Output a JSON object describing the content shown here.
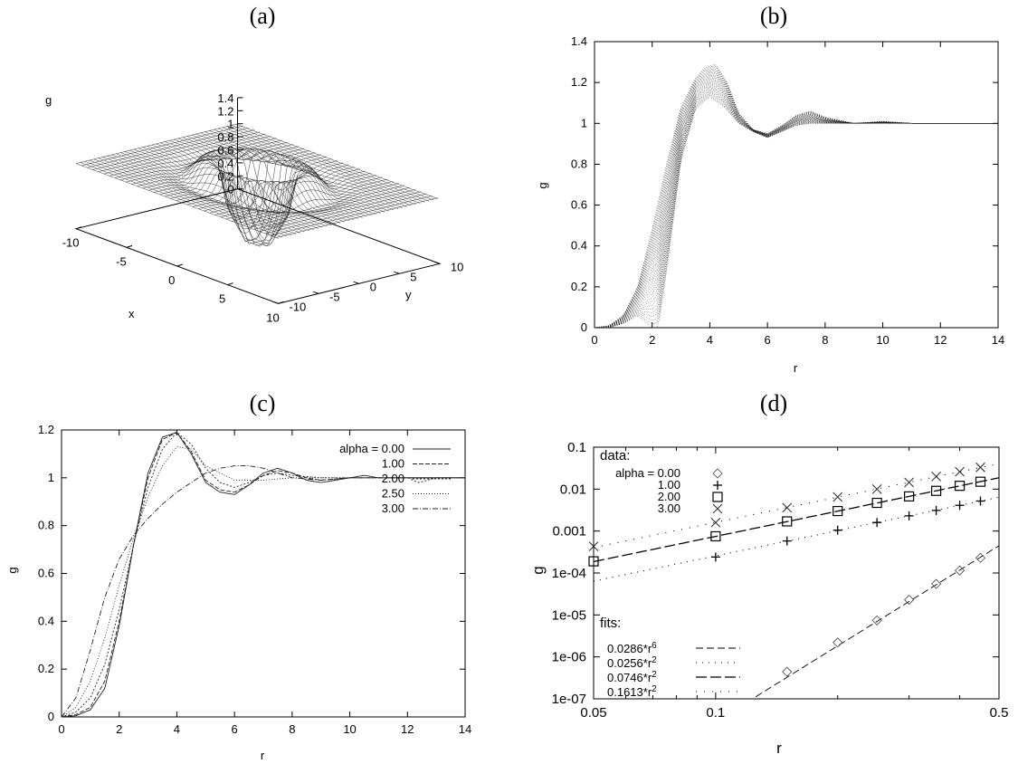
{
  "panels": {
    "a": {
      "title": "(a)"
    },
    "b": {
      "title": "(b)"
    },
    "c": {
      "title": "(c)"
    },
    "d": {
      "title": "(d)"
    }
  },
  "chart_data": [
    {
      "panel": "a",
      "type": "surface",
      "zlabel": "g",
      "xlabel": "x",
      "ylabel": "y",
      "z_ticks": [
        "1.4",
        "1.2",
        "1",
        "0.8",
        "0.6",
        "0.4",
        "0.2",
        "0"
      ],
      "x_ticks": [
        "-10",
        "-5",
        "0",
        "5",
        "10"
      ],
      "y_ticks": [
        "-10",
        "-5",
        "0",
        "5",
        "10"
      ],
      "xlim": [
        -10,
        10
      ],
      "ylim": [
        -10,
        10
      ],
      "zlim": [
        0,
        1.4
      ]
    },
    {
      "panel": "b",
      "type": "line",
      "xlabel": "r",
      "ylabel": "g",
      "xlim": [
        0,
        14
      ],
      "ylim": [
        0,
        1.4
      ],
      "x_ticks": [
        "0",
        "2",
        "4",
        "6",
        "8",
        "10",
        "12",
        "14"
      ],
      "y_ticks": [
        "0",
        "0.2",
        "0.4",
        "0.6",
        "0.8",
        "1",
        "1.2",
        "1.4"
      ],
      "envelope": {
        "upper": {
          "x": [
            0,
            0.5,
            1,
            1.5,
            2,
            2.5,
            3,
            3.5,
            3.8,
            4.2,
            4.6,
            5,
            5.5,
            6,
            6.5,
            7,
            7.5,
            8,
            9,
            10,
            11,
            12,
            13,
            14
          ],
          "y": [
            0,
            0.01,
            0.06,
            0.2,
            0.48,
            0.8,
            1.08,
            1.22,
            1.27,
            1.29,
            1.2,
            1.05,
            0.97,
            0.95,
            0.99,
            1.04,
            1.06,
            1.03,
            1.0,
            1.01,
            1.0,
            1.0,
            1.0,
            1.0
          ]
        },
        "lower": {
          "x": [
            0,
            0.5,
            1,
            1.5,
            2,
            2.2,
            2.5,
            3,
            3.5,
            4,
            4.5,
            5,
            5.5,
            6,
            6.5,
            7,
            7.5,
            8,
            9,
            10,
            11,
            12,
            13,
            14
          ],
          "y": [
            0,
            0.0,
            0.02,
            0.06,
            0.0,
            0.0,
            0.28,
            0.82,
            1.07,
            1.13,
            1.08,
            1.0,
            0.96,
            0.93,
            0.96,
            0.99,
            1.0,
            1.0,
            1.0,
            1.0,
            1.0,
            1.0,
            1.0,
            1.0
          ]
        }
      }
    },
    {
      "panel": "c",
      "type": "line",
      "xlabel": "r",
      "ylabel": "g",
      "xlim": [
        0,
        14
      ],
      "ylim": [
        0,
        1.2
      ],
      "x_ticks": [
        "0",
        "2",
        "4",
        "6",
        "8",
        "10",
        "12",
        "14"
      ],
      "y_ticks": [
        "0",
        "0.2",
        "0.4",
        "0.6",
        "0.8",
        "1",
        "1.2"
      ],
      "legend_labels": [
        "alpha = 0.00",
        "1.00",
        "2.00",
        "2.50",
        "3.00"
      ],
      "legend_position": "top-right",
      "series": [
        {
          "name": "alpha = 0.00",
          "dash": "",
          "x": [
            0,
            0.5,
            1,
            1.5,
            2,
            2.5,
            3,
            3.5,
            4,
            4.5,
            5,
            5.5,
            6,
            6.5,
            7,
            7.5,
            8,
            8.5,
            9,
            9.5,
            10,
            10.5,
            11,
            12,
            13,
            14
          ],
          "y": [
            0,
            0.005,
            0.03,
            0.12,
            0.38,
            0.72,
            1.02,
            1.17,
            1.19,
            1.1,
            0.98,
            0.94,
            0.93,
            0.97,
            1.02,
            1.04,
            1.02,
            0.99,
            0.98,
            0.99,
            1.0,
            1.01,
            1.0,
            1.0,
            1.0,
            1.0
          ]
        },
        {
          "name": "1.00",
          "dash": "5,2",
          "x": [
            0,
            0.5,
            1,
            1.5,
            2,
            2.5,
            3,
            3.5,
            4,
            4.5,
            5,
            5.5,
            6,
            6.5,
            7,
            7.5,
            8,
            8.5,
            9,
            10,
            11,
            12,
            13,
            14
          ],
          "y": [
            0,
            0.01,
            0.04,
            0.15,
            0.4,
            0.72,
            1.0,
            1.16,
            1.19,
            1.11,
            0.99,
            0.95,
            0.94,
            0.97,
            1.01,
            1.03,
            1.02,
            1.0,
            0.99,
            1.0,
            1.0,
            1.0,
            1.0,
            1.0
          ]
        },
        {
          "name": "2.00",
          "dash": "2,2",
          "x": [
            0,
            0.5,
            1,
            1.5,
            2,
            2.5,
            3,
            3.5,
            4,
            4.5,
            5,
            5.5,
            6,
            6.5,
            7,
            7.5,
            8,
            9,
            10,
            11,
            12,
            12.4,
            13,
            14
          ],
          "y": [
            0,
            0.02,
            0.08,
            0.22,
            0.45,
            0.72,
            0.96,
            1.12,
            1.19,
            1.14,
            1.04,
            0.98,
            0.96,
            0.98,
            1.01,
            1.02,
            1.01,
            1.0,
            1.0,
            1.0,
            1.0,
            0.98,
            1.0,
            1.0
          ]
        },
        {
          "name": "2.50",
          "dash": "1,2",
          "x": [
            0,
            0.5,
            1,
            1.5,
            2,
            2.5,
            3,
            3.5,
            4,
            4.5,
            5,
            6,
            7,
            8,
            9,
            10,
            11,
            12,
            13,
            14
          ],
          "y": [
            0,
            0.04,
            0.15,
            0.33,
            0.55,
            0.75,
            0.92,
            1.05,
            1.13,
            1.12,
            1.05,
            0.99,
            0.99,
            1.0,
            1.0,
            1.0,
            1.0,
            1.0,
            1.0,
            1.0
          ]
        },
        {
          "name": "3.00",
          "dash": "6,2,1,2",
          "x": [
            0,
            0.5,
            1,
            1.5,
            2,
            2.5,
            3,
            3.5,
            4,
            4.5,
            5,
            5.5,
            6,
            6.5,
            7,
            7.5,
            8,
            9,
            10,
            11,
            12,
            13,
            14
          ],
          "y": [
            0,
            0.08,
            0.28,
            0.5,
            0.66,
            0.76,
            0.83,
            0.89,
            0.94,
            0.98,
            1.02,
            1.04,
            1.05,
            1.05,
            1.04,
            1.02,
            1.0,
            0.99,
            1.0,
            1.0,
            1.0,
            1.0,
            1.0
          ]
        }
      ]
    },
    {
      "panel": "d",
      "type": "scatter",
      "xlabel": "r",
      "ylabel": "g",
      "xscale": "log",
      "yscale": "log",
      "xlim": [
        0.05,
        0.5
      ],
      "ylim": [
        1e-07,
        0.1
      ],
      "x_ticks": [
        {
          "v": 0.05,
          "label": "0.05"
        },
        {
          "v": 0.1,
          "label": "0.1"
        },
        {
          "v": 0.5,
          "label": "0.5"
        }
      ],
      "y_ticks": [
        {
          "v": 0.1,
          "label": "0.1"
        },
        {
          "v": 0.01,
          "label": "0.01"
        },
        {
          "v": 0.001,
          "label": "0.001"
        },
        {
          "v": 0.0001,
          "label": "1e-04"
        },
        {
          "v": 1e-05,
          "label": "1e-05"
        },
        {
          "v": 1e-06,
          "label": "1e-06"
        },
        {
          "v": 1e-07,
          "label": "1e-07"
        }
      ],
      "legend_data_title": "data:",
      "legend_fits_title": "fits:",
      "series": [
        {
          "name": "alpha = 0.00",
          "marker": "diamond",
          "x": [
            0.15,
            0.2,
            0.25,
            0.3,
            0.35,
            0.4,
            0.45
          ],
          "y": [
            4.4e-07,
            2.2e-06,
            7.4e-06,
            2.3e-05,
            5.5e-05,
            0.000115,
            0.00023
          ]
        },
        {
          "name": "1.00",
          "marker": "plus",
          "x": [
            0.1,
            0.15,
            0.2,
            0.25,
            0.3,
            0.35,
            0.4,
            0.45
          ],
          "y": [
            0.00024,
            0.00058,
            0.00105,
            0.0016,
            0.0023,
            0.0031,
            0.0041,
            0.0052
          ]
        },
        {
          "name": "2.00",
          "marker": "square",
          "x": [
            0.05,
            0.1,
            0.15,
            0.2,
            0.25,
            0.3,
            0.35,
            0.4,
            0.45
          ],
          "y": [
            0.00019,
            0.00075,
            0.0017,
            0.003,
            0.0047,
            0.0067,
            0.0091,
            0.012,
            0.015
          ]
        },
        {
          "name": "3.00",
          "marker": "cross",
          "x": [
            0.05,
            0.1,
            0.15,
            0.2,
            0.25,
            0.3,
            0.35,
            0.4,
            0.45
          ],
          "y": [
            0.00043,
            0.0016,
            0.0036,
            0.0065,
            0.01,
            0.0145,
            0.02,
            0.026,
            0.033
          ]
        }
      ],
      "fits": [
        {
          "label": "0.0286*r",
          "exponent": "6",
          "coef": 0.0286,
          "power": 6,
          "dash": "8,4",
          "lw": 0.9
        },
        {
          "label": "0.0256*r",
          "exponent": "2",
          "coef": 0.0256,
          "power": 2,
          "dash": "1,6",
          "lw": 1.1
        },
        {
          "label": "0.0746*r",
          "exponent": "2",
          "coef": 0.0746,
          "power": 2,
          "dash": "12,4",
          "lw": 1.3
        },
        {
          "label": "0.1613*r",
          "exponent": "2",
          "coef": 0.1613,
          "power": 2,
          "dash": "1,8",
          "lw": 1.1
        }
      ]
    }
  ]
}
